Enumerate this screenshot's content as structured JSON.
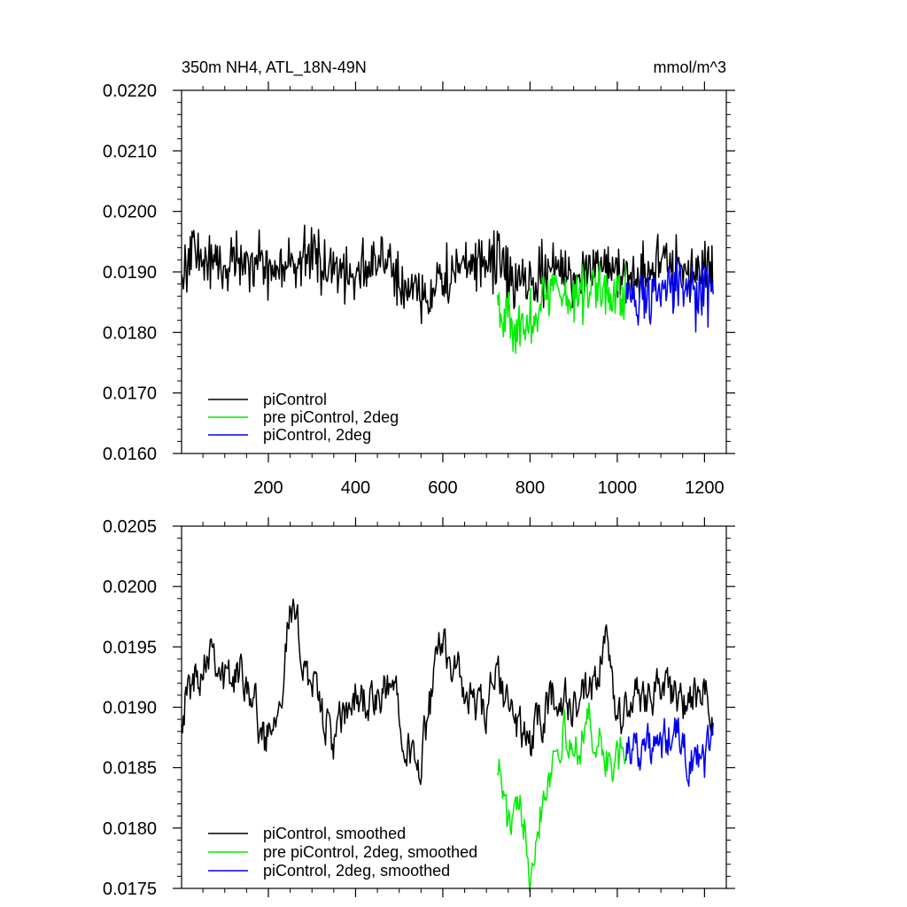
{
  "chart_data": [
    {
      "type": "line",
      "title": "350m NH4, ATL_18N-49N",
      "units": "mmol/m^3",
      "xlim": [
        1,
        1250
      ],
      "ylim": [
        0.016,
        0.022
      ],
      "x_ticks": [
        "200",
        "400",
        "600",
        "800",
        "1000",
        "1200"
      ],
      "y_ticks": [
        "0.0160",
        "0.0170",
        "0.0180",
        "0.0190",
        "0.0200",
        "0.0210",
        "0.0220"
      ],
      "legend": "bottom-left",
      "series": [
        {
          "name": "piControl",
          "color": "#000000",
          "x_start": 1,
          "x_end": 1220,
          "keypoints": [
            [
              1,
              0.0188
            ],
            [
              20,
              0.0194
            ],
            [
              50,
              0.0192
            ],
            [
              100,
              0.0191
            ],
            [
              150,
              0.0193
            ],
            [
              200,
              0.019
            ],
            [
              250,
              0.0191
            ],
            [
              300,
              0.0193
            ],
            [
              350,
              0.019
            ],
            [
              400,
              0.019
            ],
            [
              450,
              0.0192
            ],
            [
              500,
              0.0189
            ],
            [
              540,
              0.0186
            ],
            [
              580,
              0.0187
            ],
            [
              620,
              0.019
            ],
            [
              680,
              0.0191
            ],
            [
              720,
              0.0192
            ],
            [
              760,
              0.0189
            ],
            [
              800,
              0.0187
            ],
            [
              850,
              0.0191
            ],
            [
              900,
              0.0189
            ],
            [
              950,
              0.0192
            ],
            [
              1000,
              0.019
            ],
            [
              1050,
              0.019
            ],
            [
              1100,
              0.0191
            ],
            [
              1150,
              0.019
            ],
            [
              1200,
              0.0191
            ],
            [
              1220,
              0.019
            ]
          ]
        },
        {
          "name": "pre piControl, 2deg",
          "color": "#00ee00",
          "x_start": 725,
          "x_end": 1020,
          "keypoints": [
            [
              725,
              0.0186
            ],
            [
              760,
              0.0181
            ],
            [
              790,
              0.018
            ],
            [
              820,
              0.0185
            ],
            [
              860,
              0.0187
            ],
            [
              900,
              0.0186
            ],
            [
              950,
              0.0188
            ],
            [
              1000,
              0.0186
            ],
            [
              1020,
              0.0186
            ]
          ]
        },
        {
          "name": "piControl, 2deg",
          "color": "#0000ee",
          "x_start": 1020,
          "x_end": 1220,
          "keypoints": [
            [
              1020,
              0.0186
            ],
            [
              1060,
              0.0186
            ],
            [
              1100,
              0.0187
            ],
            [
              1140,
              0.0187
            ],
            [
              1180,
              0.0186
            ],
            [
              1220,
              0.0187
            ]
          ]
        }
      ]
    },
    {
      "type": "line",
      "title": "",
      "xlim": [
        1,
        1250
      ],
      "ylim": [
        0.0175,
        0.0205
      ],
      "x_ticks": [],
      "y_ticks": [
        "0.0175",
        "0.0180",
        "0.0185",
        "0.0190",
        "0.0195",
        "0.0200",
        "0.0205"
      ],
      "legend": "bottom-left",
      "series": [
        {
          "name": "piControl, smoothed",
          "color": "#000000",
          "x_start": 1,
          "x_end": 1220,
          "keypoints": [
            [
              1,
              0.019
            ],
            [
              40,
              0.0193
            ],
            [
              70,
              0.0196
            ],
            [
              100,
              0.0192
            ],
            [
              150,
              0.0193
            ],
            [
              190,
              0.0187
            ],
            [
              230,
              0.0192
            ],
            [
              250,
              0.0198
            ],
            [
              300,
              0.0192
            ],
            [
              350,
              0.0187
            ],
            [
              400,
              0.0191
            ],
            [
              450,
              0.019
            ],
            [
              490,
              0.0192
            ],
            [
              540,
              0.0184
            ],
            [
              580,
              0.0192
            ],
            [
              600,
              0.0196
            ],
            [
              650,
              0.0191
            ],
            [
              700,
              0.0189
            ],
            [
              720,
              0.0193
            ],
            [
              760,
              0.0189
            ],
            [
              800,
              0.0187
            ],
            [
              850,
              0.0191
            ],
            [
              900,
              0.019
            ],
            [
              950,
              0.0191
            ],
            [
              970,
              0.0196
            ],
            [
              1000,
              0.0189
            ],
            [
              1050,
              0.0191
            ],
            [
              1100,
              0.0192
            ],
            [
              1150,
              0.019
            ],
            [
              1200,
              0.0191
            ],
            [
              1220,
              0.0189
            ]
          ]
        },
        {
          "name": "pre piControl, 2deg, smoothed",
          "color": "#00ee00",
          "x_start": 725,
          "x_end": 1020,
          "keypoints": [
            [
              725,
              0.0186
            ],
            [
              750,
              0.018
            ],
            [
              790,
              0.0181
            ],
            [
              800,
              0.0177
            ],
            [
              830,
              0.0183
            ],
            [
              870,
              0.0188
            ],
            [
              900,
              0.0186
            ],
            [
              930,
              0.0189
            ],
            [
              970,
              0.0186
            ],
            [
              1000,
              0.0185
            ],
            [
              1020,
              0.0187
            ]
          ]
        },
        {
          "name": "piControl, 2deg, smoothed",
          "color": "#0000ee",
          "x_start": 1020,
          "x_end": 1220,
          "keypoints": [
            [
              1020,
              0.0187
            ],
            [
              1060,
              0.0187
            ],
            [
              1090,
              0.0186
            ],
            [
              1130,
              0.0188
            ],
            [
              1160,
              0.0186
            ],
            [
              1200,
              0.0185
            ],
            [
              1220,
              0.0189
            ]
          ]
        }
      ]
    }
  ]
}
